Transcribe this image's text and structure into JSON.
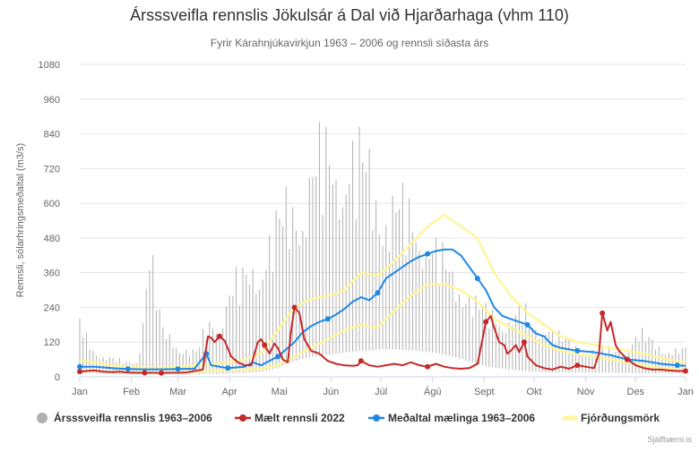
{
  "chart_data": {
    "type": "line",
    "title": "Ársssveifla rennslis Jökulsár á Dal við Hjarðarhaga (vhm 110)",
    "subtitle": "Fyrir Kárahnjúkavirkjun 1963 – 2006 og rennsli síðasta árs",
    "ylabel": "Rennsli, sólarhringsmeðaltal (m3/s)",
    "ylim": [
      0,
      1080
    ],
    "yticks": [
      0,
      120,
      240,
      360,
      480,
      600,
      720,
      840,
      960,
      1080
    ],
    "months": [
      "Jan",
      "Feb",
      "Mar",
      "Apr",
      "Maí",
      "Jún",
      "Júl",
      "Ágú",
      "Sept",
      "Okt",
      "Nóv",
      "Des",
      "Jan"
    ],
    "grid": true,
    "legend_position": "bottom",
    "series": [
      {
        "name": "Ársssveifla rennslis 1963–2006",
        "kind": "range",
        "color": "#b0b0b0",
        "x": [
          1,
          8,
          15,
          22,
          29,
          36,
          43,
          50,
          57,
          64,
          71,
          78,
          85,
          92,
          99,
          106,
          113,
          120,
          127,
          134,
          141,
          148,
          155,
          162,
          169,
          176,
          183,
          190,
          197,
          204,
          211,
          218,
          225,
          232,
          239,
          246,
          253,
          260,
          267,
          274,
          281,
          288,
          295,
          302,
          309,
          316,
          323,
          330,
          337,
          344,
          351,
          358,
          365
        ],
        "low": [
          14,
          12,
          11,
          10,
          10,
          10,
          10,
          11,
          12,
          10,
          10,
          10,
          10,
          12,
          14,
          15,
          20,
          30,
          50,
          60,
          70,
          75,
          80,
          85,
          90,
          90,
          95,
          95,
          92,
          90,
          85,
          80,
          70,
          60,
          45,
          35,
          30,
          25,
          20,
          18,
          16,
          15,
          15,
          15,
          14,
          14,
          14,
          13,
          13,
          13,
          12,
          12,
          12
        ],
        "high": [
          220,
          130,
          90,
          70,
          60,
          70,
          540,
          200,
          160,
          120,
          100,
          220,
          250,
          380,
          400,
          480,
          560,
          620,
          720,
          760,
          860,
          920,
          920,
          920,
          890,
          860,
          720,
          700,
          680,
          640,
          560,
          480,
          420,
          380,
          300,
          260,
          260,
          240,
          280,
          200,
          240,
          170,
          140,
          120,
          110,
          110,
          110,
          120,
          180,
          150,
          130,
          110,
          110
        ]
      },
      {
        "name": "Mælt rennsli 2022",
        "kind": "line",
        "color": "#c62828",
        "x": [
          1,
          5,
          10,
          15,
          20,
          25,
          30,
          35,
          40,
          45,
          50,
          55,
          60,
          65,
          70,
          75,
          78,
          80,
          82,
          85,
          88,
          92,
          96,
          100,
          104,
          108,
          110,
          112,
          115,
          118,
          120,
          123,
          126,
          128,
          130,
          133,
          136,
          140,
          145,
          150,
          155,
          160,
          165,
          168,
          170,
          175,
          180,
          185,
          190,
          195,
          200,
          205,
          210,
          215,
          220,
          225,
          230,
          235,
          240,
          243,
          245,
          248,
          250,
          253,
          256,
          258,
          260,
          263,
          265,
          268,
          270,
          275,
          280,
          285,
          290,
          295,
          300,
          305,
          310,
          313,
          315,
          318,
          320,
          323,
          325,
          330,
          335,
          340,
          345,
          350,
          355,
          360,
          365
        ],
        "y": [
          18,
          20,
          22,
          18,
          16,
          18,
          15,
          14,
          14,
          14,
          13,
          14,
          14,
          15,
          20,
          25,
          140,
          135,
          120,
          140,
          125,
          70,
          50,
          40,
          40,
          120,
          130,
          110,
          80,
          115,
          100,
          60,
          50,
          160,
          240,
          220,
          130,
          90,
          80,
          55,
          45,
          40,
          38,
          40,
          55,
          40,
          35,
          40,
          45,
          40,
          50,
          40,
          35,
          45,
          35,
          30,
          28,
          30,
          45,
          130,
          190,
          210,
          170,
          120,
          110,
          80,
          90,
          110,
          85,
          120,
          70,
          40,
          30,
          25,
          35,
          28,
          40,
          35,
          30,
          80,
          220,
          160,
          190,
          110,
          90,
          60,
          40,
          30,
          25,
          25,
          22,
          20,
          20
        ],
        "markers": [
          1,
          40,
          50,
          85,
          112,
          130,
          170,
          210,
          245,
          268,
          300,
          315,
          330,
          365
        ]
      },
      {
        "name": "Meðaltal mælinga 1963–2006",
        "kind": "line",
        "color": "#1e88e5",
        "x": [
          1,
          10,
          20,
          30,
          40,
          50,
          60,
          70,
          77,
          80,
          90,
          100,
          105,
          110,
          115,
          120,
          125,
          130,
          135,
          140,
          145,
          150,
          155,
          160,
          165,
          170,
          175,
          180,
          185,
          190,
          195,
          200,
          205,
          210,
          215,
          220,
          225,
          230,
          235,
          240,
          245,
          250,
          255,
          260,
          265,
          270,
          275,
          280,
          285,
          290,
          300,
          310,
          320,
          330,
          340,
          350,
          360,
          365
        ],
        "y": [
          35,
          35,
          30,
          27,
          26,
          26,
          27,
          28,
          80,
          40,
          30,
          35,
          50,
          40,
          55,
          70,
          95,
          120,
          155,
          175,
          190,
          200,
          215,
          235,
          260,
          275,
          265,
          290,
          340,
          360,
          380,
          400,
          415,
          425,
          435,
          440,
          440,
          420,
          380,
          340,
          300,
          240,
          210,
          200,
          190,
          180,
          150,
          140,
          110,
          100,
          90,
          85,
          75,
          60,
          55,
          45,
          40,
          38
        ],
        "markers": [
          1,
          30,
          60,
          77,
          90,
          120,
          150,
          180,
          210,
          240,
          270,
          300,
          330,
          360
        ]
      },
      {
        "name": "Fjórðungsmörk",
        "kind": "band",
        "color": "#fff59d",
        "x": [
          1,
          10,
          20,
          30,
          40,
          50,
          60,
          70,
          80,
          90,
          100,
          110,
          120,
          130,
          140,
          150,
          160,
          170,
          180,
          190,
          200,
          210,
          220,
          230,
          240,
          250,
          260,
          270,
          280,
          290,
          300,
          310,
          320,
          330,
          340,
          350,
          360,
          365
        ],
        "lower": [
          20,
          20,
          18,
          16,
          15,
          15,
          16,
          18,
          20,
          22,
          25,
          28,
          40,
          70,
          100,
          130,
          160,
          180,
          170,
          230,
          280,
          320,
          320,
          300,
          260,
          200,
          170,
          140,
          110,
          90,
          80,
          70,
          60,
          50,
          40,
          30,
          25,
          22
        ],
        "upper": [
          55,
          50,
          40,
          35,
          32,
          32,
          34,
          40,
          45,
          50,
          60,
          80,
          160,
          240,
          270,
          280,
          300,
          360,
          350,
          400,
          460,
          520,
          560,
          520,
          480,
          360,
          280,
          220,
          180,
          140,
          120,
          110,
          100,
          90,
          80,
          65,
          55,
          50
        ]
      }
    ]
  },
  "legend": {
    "range": "Ársssveifla rennslis 1963–2006",
    "measured": "Mælt rennsli 2022",
    "mean": "Meðaltal mælinga 1963–2006",
    "quartiles": "Fjórðungsmörk"
  },
  "credit": "Sjálfbærni.is"
}
